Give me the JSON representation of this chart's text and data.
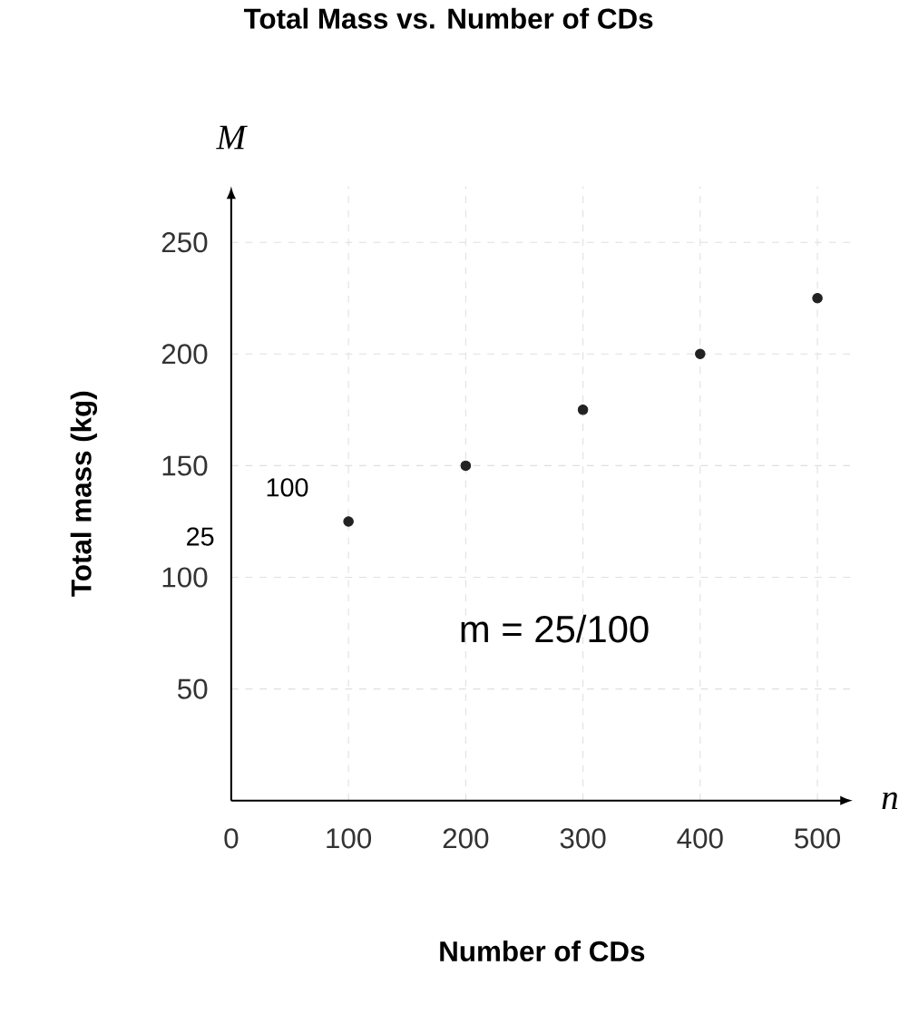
{
  "chart_data": {
    "type": "scatter",
    "title": "Total Mass vs. Number of CDs",
    "xlabel": "Number of CDs",
    "ylabel": "Total mass (kg)",
    "x": [
      100,
      200,
      300,
      400,
      500
    ],
    "series": [
      {
        "color": "#222222",
        "values": [
          125,
          150,
          175,
          200,
          225
        ]
      }
    ],
    "xlim": [
      0,
      530
    ],
    "ylim": [
      0,
      275
    ],
    "xticks": [
      0,
      100,
      200,
      300,
      400,
      500
    ],
    "yticks": [
      50,
      100,
      150,
      200,
      250
    ],
    "grid": true,
    "marker": "circle",
    "annotations": [
      "M",
      "n",
      "100",
      "25",
      "m = 25/100"
    ]
  }
}
